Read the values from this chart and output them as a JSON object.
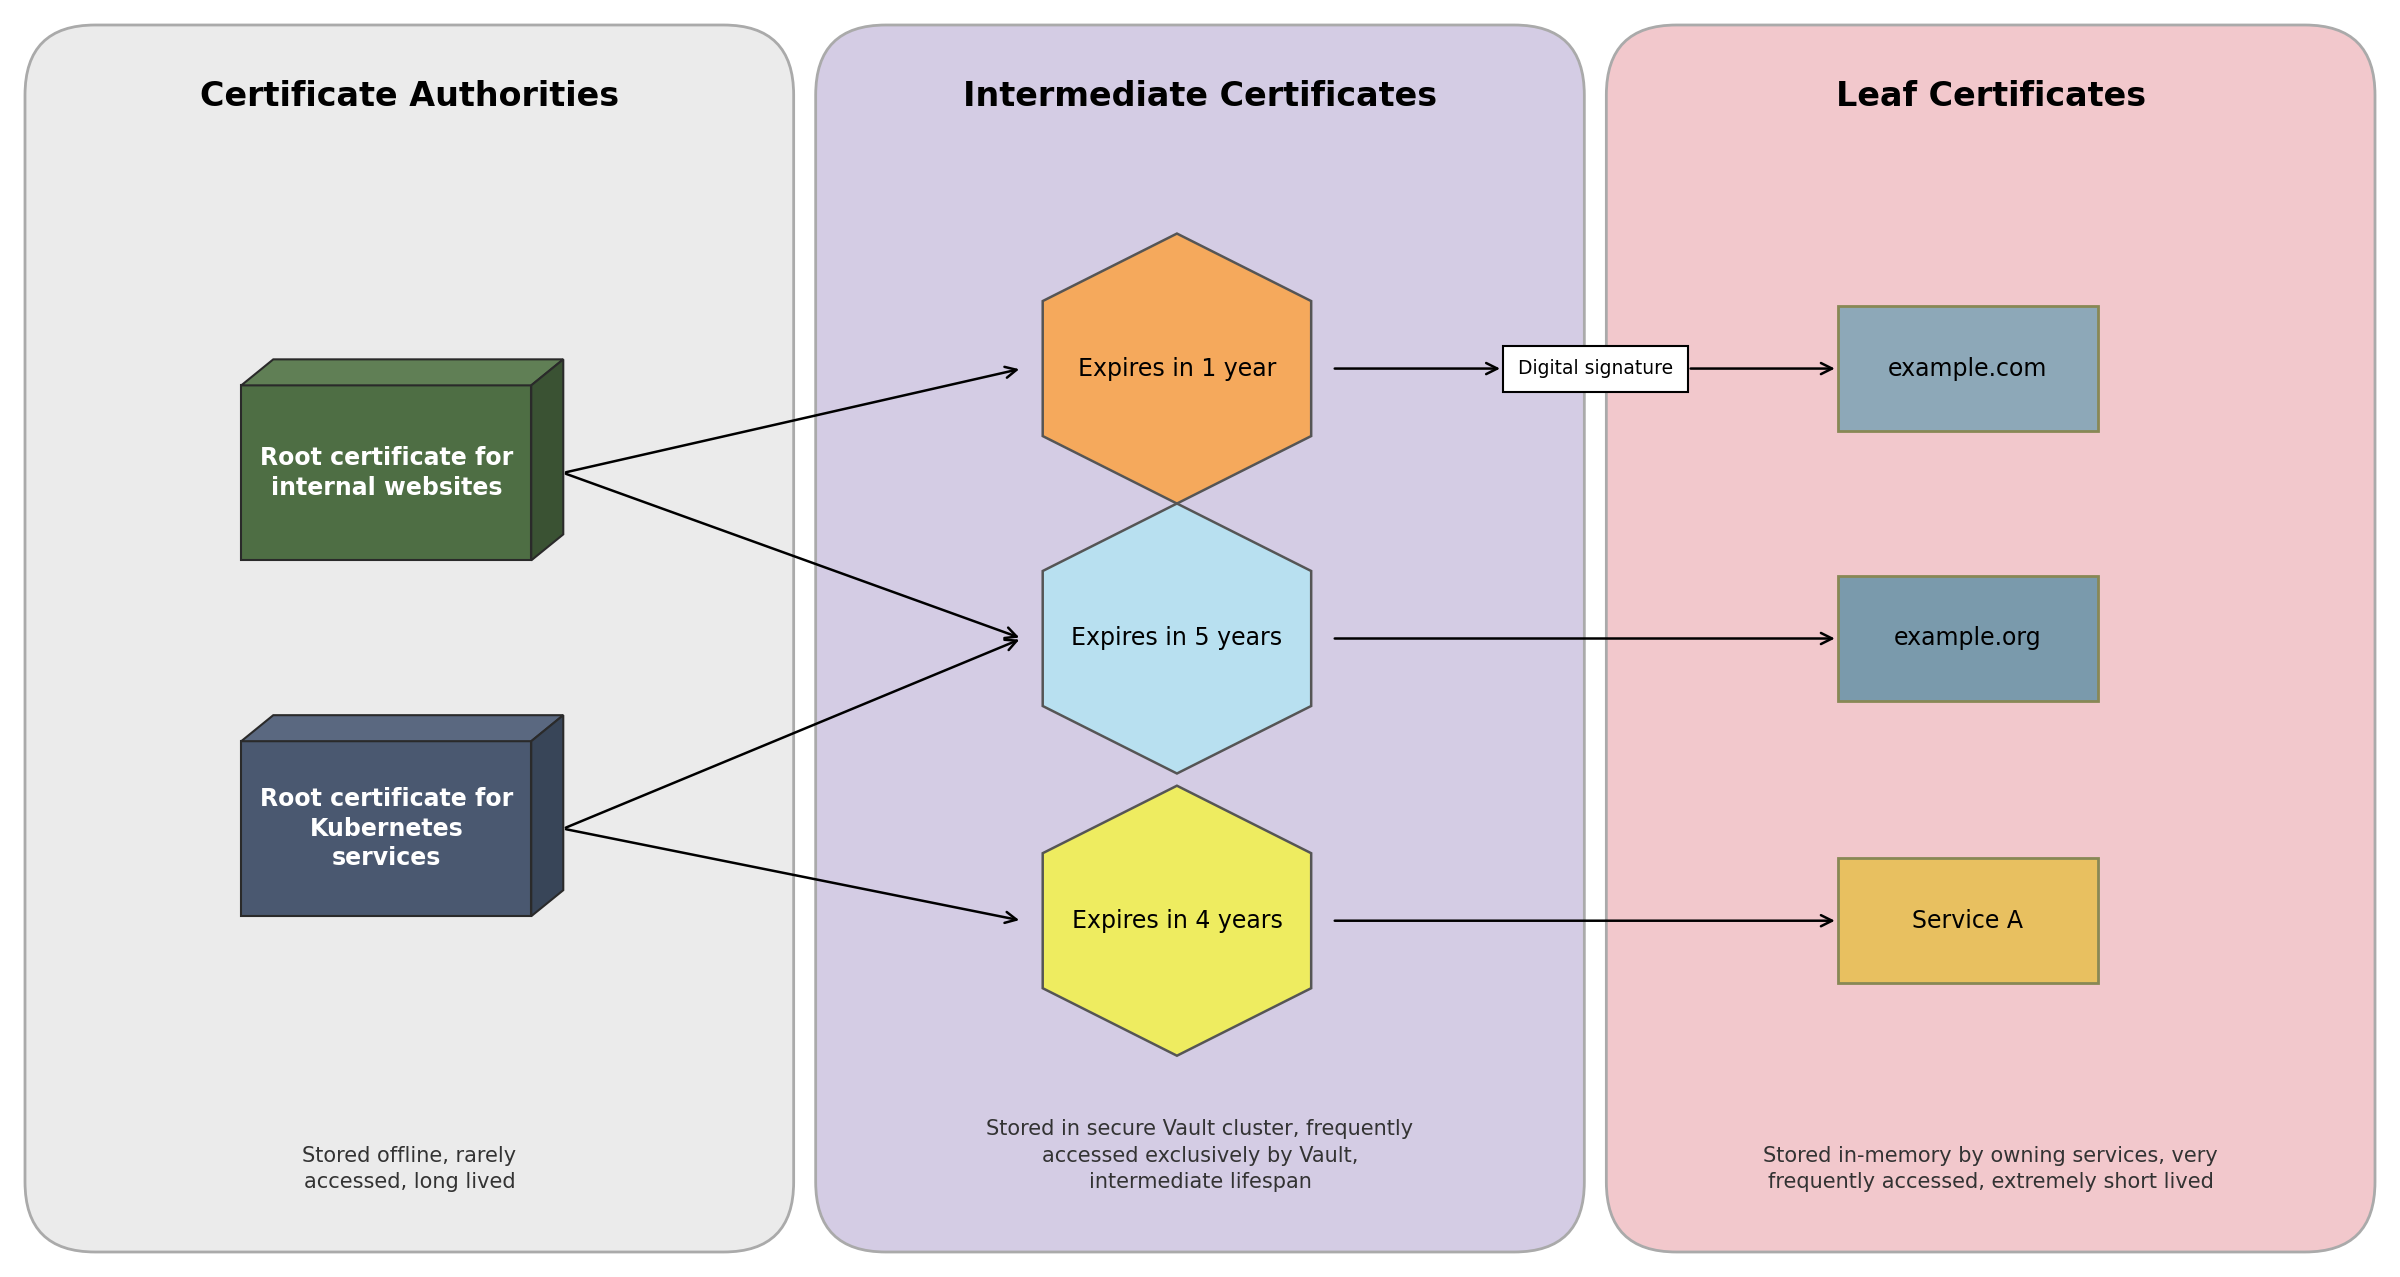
{
  "fig_width": 24.0,
  "fig_height": 12.77,
  "bg_color": "#ffffff",
  "outer_border_color": "#333333",
  "panel1": {
    "title": "Certificate Authorities",
    "bg_color": "#ebebeb",
    "border_color": "#aaaaaa",
    "footer": "Stored offline, rarely\naccessed, long lived",
    "boxes": [
      {
        "label": "Root certificate for\ninternal websites",
        "color_front": "#4e6e44",
        "color_top": "#607f55",
        "color_side": "#3a5233"
      },
      {
        "label": "Root certificate for\nKubernetes\nservices",
        "color_front": "#4a5870",
        "color_top": "#5a6880",
        "color_side": "#384558"
      }
    ]
  },
  "panel2": {
    "title": "Intermediate Certificates",
    "bg_color": "#d4cce4",
    "border_color": "#aaaaaa",
    "footer": "Stored in secure Vault cluster, frequently\naccessed exclusively by Vault,\nintermediate lifespan",
    "hexagons": [
      {
        "label": "Expires in 1 year",
        "color": "#f5a95c"
      },
      {
        "label": "Expires in 5 years",
        "color": "#b8e0f0"
      },
      {
        "label": "Expires in 4 years",
        "color": "#eeec60"
      }
    ]
  },
  "panel3": {
    "title": "Leaf Certificates",
    "bg_color": "#f2c8cc",
    "border_color": "#aaaaaa",
    "footer": "Stored in-memory by owning services, very\nfrequently accessed, extremely short lived",
    "boxes": [
      {
        "label": "example.com",
        "color": "#8da8b8"
      },
      {
        "label": "example.org",
        "color": "#7a9aac"
      },
      {
        "label": "Service A",
        "color": "#e8c060"
      }
    ]
  },
  "digital_sig_label": "Digital signature",
  "title_fontsize": 24,
  "label_fontsize": 17,
  "footer_fontsize": 15
}
